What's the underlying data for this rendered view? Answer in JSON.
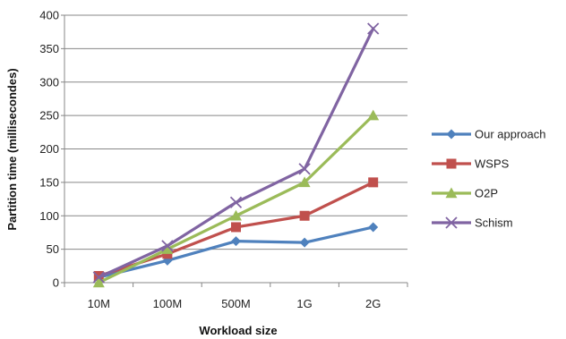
{
  "chart_data": {
    "type": "line",
    "title": "",
    "xlabel": "Workload size",
    "ylabel": "Partition time (millisecondes)",
    "categories": [
      "10M",
      "100M",
      "500M",
      "1G",
      "2G"
    ],
    "ylim": [
      0,
      400
    ],
    "yticks": [
      0,
      50,
      100,
      150,
      200,
      250,
      300,
      350,
      400
    ],
    "grid": true,
    "legend_position": "right",
    "series": [
      {
        "name": "Our approach",
        "values": [
          8,
          33,
          62,
          60,
          83
        ],
        "color": "#4f81bd",
        "marker": "diamond"
      },
      {
        "name": "WSPS",
        "values": [
          10,
          43,
          83,
          100,
          150
        ],
        "color": "#c0504d",
        "marker": "square"
      },
      {
        "name": "O2P",
        "values": [
          0,
          50,
          100,
          150,
          250
        ],
        "color": "#9bbb59",
        "marker": "triangle"
      },
      {
        "name": "Schism",
        "values": [
          8,
          55,
          120,
          170,
          380
        ],
        "color": "#8064a2",
        "marker": "x"
      }
    ]
  }
}
